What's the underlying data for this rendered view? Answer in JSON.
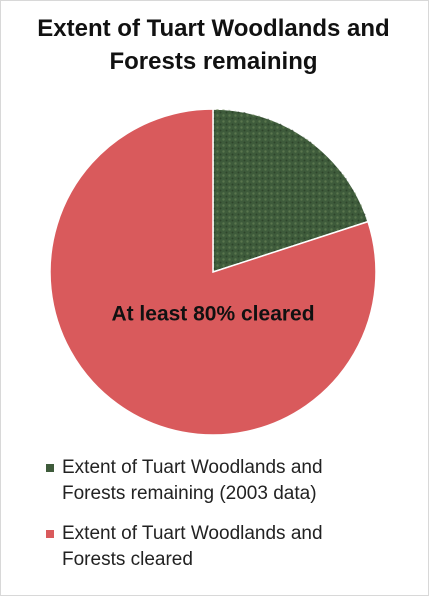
{
  "chart_data": {
    "type": "pie",
    "title": "Extent of Tuart Woodlands and Forests remaining",
    "annotation": "At least 80% cleared",
    "categories": [
      "Extent of Tuart Woodlands and Forests remaining (2003 data)",
      "Extent of Tuart Woodlands and Forests cleared"
    ],
    "values": [
      20,
      80
    ],
    "colors": [
      "#3e5b3b",
      "#d95a5c"
    ]
  }
}
